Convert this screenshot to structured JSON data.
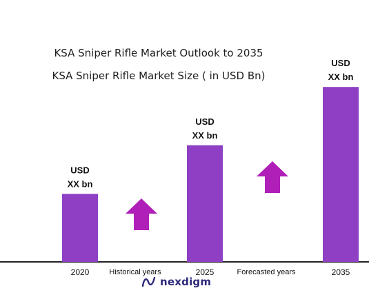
{
  "chart_data": {
    "type": "bar",
    "title": "KSA Sniper Rifle Market Outlook to 2035",
    "subtitle": "KSA Sniper Rifle Market Size ( in USD Bn)",
    "categories": [
      "2020",
      "2025",
      "2035"
    ],
    "values": [
      0.35,
      0.6,
      0.9
    ],
    "data_labels": [
      [
        "USD",
        "XX bn"
      ],
      [
        "USD",
        "XX bn"
      ],
      [
        "USD",
        "XX bn"
      ]
    ],
    "ylim": [
      0,
      1
    ],
    "bar_color": "#8e3fc3",
    "axis_color": "#222222",
    "annotations": [
      {
        "text": "Historical years",
        "arrow_color": "#b01fb8"
      },
      {
        "text": "Forecasted years",
        "arrow_color": "#b01fb8"
      }
    ],
    "grid": false,
    "legend": "none"
  },
  "logo": {
    "text": "nexdigm",
    "icon": "nexdigm-logo-icon",
    "color": "#2e2a7a"
  }
}
